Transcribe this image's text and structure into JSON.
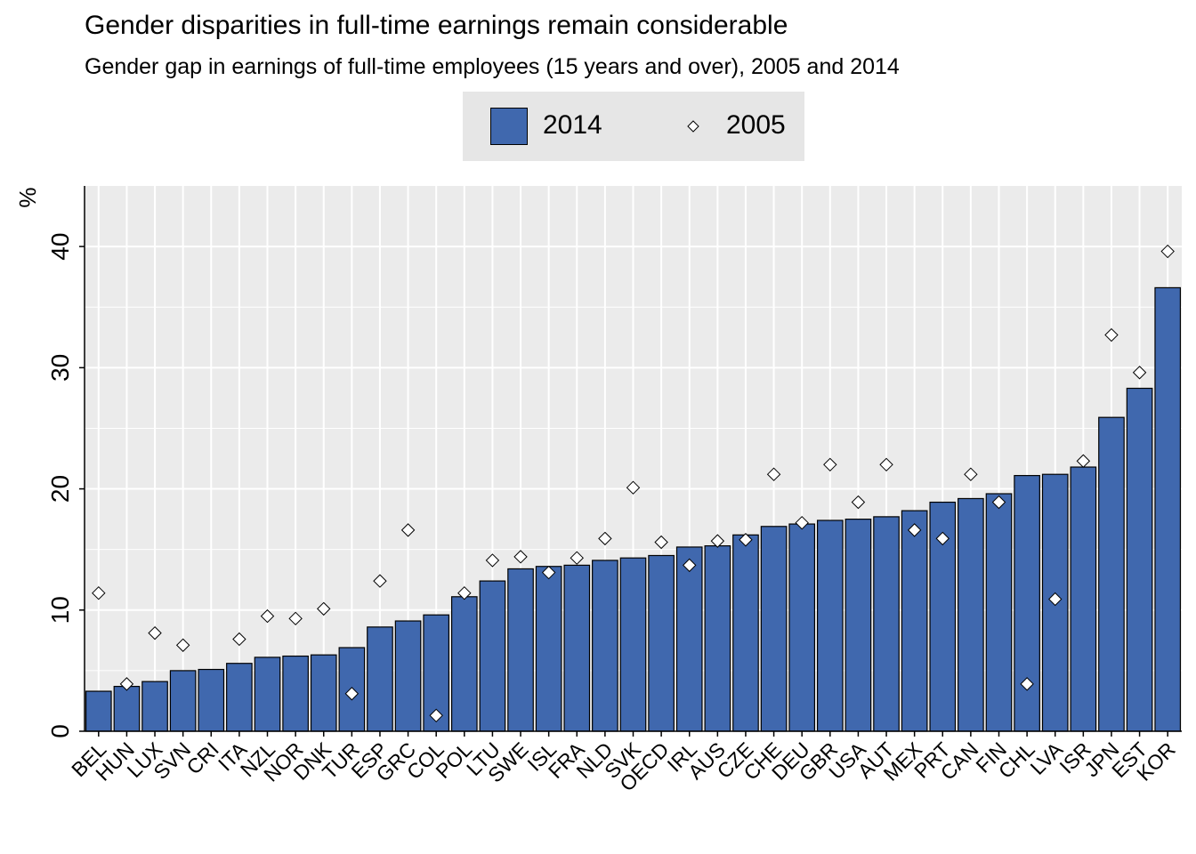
{
  "title": "Gender disparities in full-time earnings remain considerable",
  "subtitle": "Gender gap in earnings of full-time employees (15 years and over), 2005 and 2014",
  "legend": {
    "bar_label": "2014",
    "marker_label": "2005",
    "placement": "top"
  },
  "colors": {
    "bar": "#4068ae",
    "panel": "#ebebeb",
    "grid": "#ffffff",
    "legend_bg": "#e6e6e6"
  },
  "chart_data": {
    "type": "bar",
    "categories": [
      "BEL",
      "HUN",
      "LUX",
      "SVN",
      "CRI",
      "ITA",
      "NZL",
      "NOR",
      "DNK",
      "TUR",
      "ESP",
      "GRC",
      "COL",
      "POL",
      "LTU",
      "SWE",
      "ISL",
      "FRA",
      "NLD",
      "SVK",
      "OECD",
      "IRL",
      "AUS",
      "CZE",
      "CHE",
      "DEU",
      "GBR",
      "USA",
      "AUT",
      "MEX",
      "PRT",
      "CAN",
      "FIN",
      "CHL",
      "LVA",
      "ISR",
      "JPN",
      "EST",
      "KOR"
    ],
    "series": [
      {
        "name": "2014",
        "type": "bar",
        "values": [
          3.3,
          3.7,
          4.1,
          5.0,
          5.1,
          5.6,
          6.1,
          6.2,
          6.3,
          6.9,
          8.6,
          9.1,
          9.6,
          11.1,
          12.4,
          13.4,
          13.6,
          13.7,
          14.1,
          14.3,
          14.5,
          15.2,
          15.3,
          16.2,
          16.9,
          17.1,
          17.4,
          17.5,
          17.7,
          18.2,
          18.9,
          19.2,
          19.6,
          21.1,
          21.2,
          21.8,
          25.9,
          28.3,
          36.6
        ]
      },
      {
        "name": "2005",
        "type": "scatter",
        "values": [
          11.4,
          3.9,
          8.1,
          7.1,
          null,
          7.6,
          9.5,
          9.3,
          10.1,
          3.1,
          12.4,
          16.6,
          1.3,
          11.4,
          14.1,
          14.4,
          13.1,
          14.3,
          15.9,
          20.1,
          15.6,
          13.7,
          15.7,
          15.8,
          21.2,
          17.2,
          22.0,
          18.9,
          22.0,
          16.6,
          15.9,
          21.2,
          18.9,
          3.9,
          10.9,
          22.3,
          32.7,
          29.6,
          39.6
        ]
      }
    ],
    "ylabel": "%",
    "ylim": [
      0,
      45
    ],
    "yticks": [
      0,
      10,
      20,
      30,
      40
    ],
    "grid": true
  }
}
